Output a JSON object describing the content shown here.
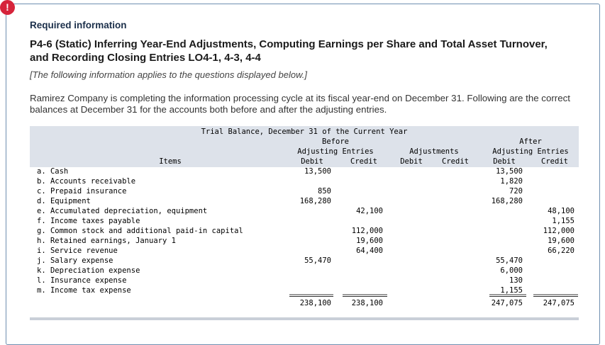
{
  "header": {
    "label": "Required information",
    "title": "P4-6 (Static) Inferring Year-End Adjustments, Computing Earnings per Share and Total Asset Turnover, and Recording Closing Entries LO4-1, 4-3, 4-4",
    "note": "[The following information applies to the questions displayed below.]"
  },
  "paragraph": "Ramirez Company is completing the information processing cycle at its fiscal year-end on December 31. Following are the correct balances at December 31 for the accounts both before and after the adjusting entries.",
  "table": {
    "title": "Trial Balance, December 31 of the Current Year",
    "groups": [
      [
        "Before",
        "Adjusting Entries"
      ],
      [
        "Adjustments"
      ],
      [
        "After",
        "Adjusting Entries"
      ]
    ],
    "columns": [
      "Items",
      "Debit",
      "Credit",
      "Debit",
      "Credit",
      "Debit",
      "Credit"
    ],
    "rows": [
      [
        "a. Cash",
        "13,500",
        null,
        null,
        null,
        "13,500",
        null
      ],
      [
        "b. Accounts receivable",
        null,
        null,
        null,
        null,
        "1,820",
        null
      ],
      [
        "c. Prepaid insurance",
        "850",
        null,
        null,
        null,
        "720",
        null
      ],
      [
        "d. Equipment",
        "168,280",
        null,
        null,
        null,
        "168,280",
        null
      ],
      [
        "e. Accumulated depreciation, equipment",
        null,
        "42,100",
        null,
        null,
        null,
        "48,100"
      ],
      [
        "f. Income taxes payable",
        null,
        null,
        null,
        null,
        null,
        "1,155"
      ],
      [
        "g. Common stock and additional paid-in capital",
        null,
        "112,000",
        null,
        null,
        null,
        "112,000"
      ],
      [
        "h. Retained earnings, January 1",
        null,
        "19,600",
        null,
        null,
        null,
        "19,600"
      ],
      [
        "i. Service revenue",
        null,
        "64,400",
        null,
        null,
        null,
        "66,220"
      ],
      [
        "j. Salary expense",
        "55,470",
        null,
        null,
        null,
        "55,470",
        null
      ],
      [
        "k. Depreciation expense",
        null,
        null,
        null,
        null,
        "6,000",
        null
      ],
      [
        "l. Insurance expense",
        null,
        null,
        null,
        null,
        "130",
        null
      ],
      [
        "m. Income tax expense",
        null,
        null,
        null,
        null,
        "1,155",
        null
      ]
    ],
    "totals": [
      "238,100",
      "238,100",
      null,
      null,
      "247,075",
      "247,075"
    ]
  }
}
